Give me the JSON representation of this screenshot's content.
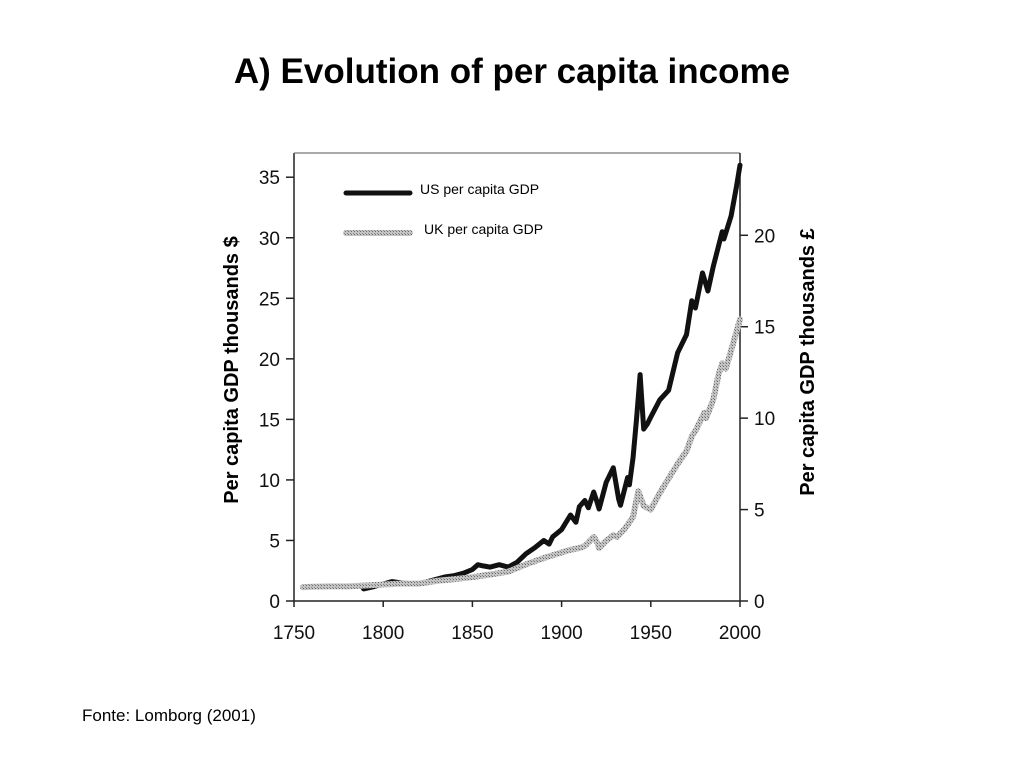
{
  "slide": {
    "title": "A) Evolution of per capita income",
    "source": "Fonte: Lomborg (2001)"
  },
  "chart_data": {
    "type": "line",
    "xlabel": "",
    "ylabel": "Per capita GDP thousands $",
    "y2label": "Per capita GDP thousands £",
    "xlim": [
      1750,
      2000
    ],
    "ylim": [
      0,
      37
    ],
    "y2lim": [
      0,
      24.5
    ],
    "xticks": [
      1750,
      1800,
      1850,
      1900,
      1950,
      2000
    ],
    "yticks": [
      0,
      5,
      10,
      15,
      20,
      25,
      30,
      35
    ],
    "y2ticks": [
      0,
      5,
      10,
      15,
      20
    ],
    "legend": "top-left",
    "grid": false,
    "series": [
      {
        "name": "US per capita GDP",
        "axis": "left",
        "color": "#111111",
        "style": "solid-thick",
        "x": [
          1789,
          1795,
          1800,
          1805,
          1810,
          1815,
          1820,
          1825,
          1830,
          1835,
          1840,
          1845,
          1850,
          1853,
          1856,
          1860,
          1865,
          1870,
          1875,
          1880,
          1885,
          1890,
          1893,
          1895,
          1900,
          1905,
          1908,
          1910,
          1913,
          1915,
          1918,
          1920,
          1921,
          1925,
          1929,
          1932,
          1933,
          1937,
          1938,
          1940,
          1942,
          1944,
          1946,
          1948,
          1950,
          1955,
          1960,
          1965,
          1970,
          1973,
          1975,
          1979,
          1982,
          1985,
          1990,
          1991,
          1995,
          1998,
          2000
        ],
        "y": [
          1.0,
          1.2,
          1.4,
          1.6,
          1.5,
          1.4,
          1.4,
          1.6,
          1.8,
          2.0,
          2.1,
          2.3,
          2.6,
          3.0,
          2.9,
          2.8,
          3.0,
          2.8,
          3.2,
          3.9,
          4.4,
          5.0,
          4.7,
          5.3,
          5.9,
          7.1,
          6.5,
          7.8,
          8.3,
          7.7,
          9.0,
          8.1,
          7.6,
          9.8,
          11.0,
          8.4,
          7.9,
          10.2,
          9.6,
          11.8,
          15.0,
          18.7,
          14.2,
          14.6,
          15.2,
          16.6,
          17.4,
          20.5,
          22.0,
          24.8,
          24.2,
          27.1,
          25.6,
          27.6,
          30.5,
          29.9,
          31.8,
          34.2,
          36.0
        ]
      },
      {
        "name": "UK per capita GDP",
        "axis": "right",
        "color": "#a0a0a0",
        "style": "stippled-thick",
        "x": [
          1755,
          1760,
          1770,
          1780,
          1790,
          1800,
          1810,
          1820,
          1830,
          1840,
          1850,
          1860,
          1870,
          1875,
          1880,
          1890,
          1900,
          1905,
          1910,
          1913,
          1918,
          1920,
          1921,
          1925,
          1929,
          1931,
          1935,
          1938,
          1940,
          1943,
          1946,
          1950,
          1955,
          1960,
          1965,
          1970,
          1973,
          1975,
          1980,
          1981,
          1985,
          1988,
          1990,
          1992,
          1995,
          2000
        ],
        "y": [
          0.75,
          0.78,
          0.8,
          0.8,
          0.85,
          0.9,
          0.95,
          0.95,
          1.1,
          1.2,
          1.3,
          1.45,
          1.6,
          1.8,
          2.0,
          2.35,
          2.65,
          2.8,
          2.9,
          3.0,
          3.5,
          3.2,
          2.9,
          3.3,
          3.6,
          3.5,
          3.9,
          4.3,
          4.6,
          6.0,
          5.2,
          5.0,
          5.9,
          6.7,
          7.5,
          8.2,
          9.0,
          9.3,
          10.3,
          10.0,
          11.0,
          12.4,
          13.0,
          12.7,
          13.7,
          15.4
        ]
      }
    ]
  }
}
